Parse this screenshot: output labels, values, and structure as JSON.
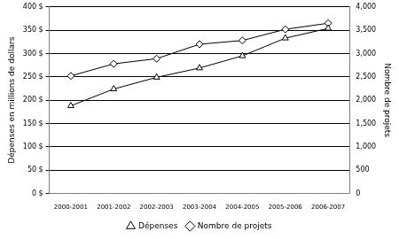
{
  "chart_data": {
    "type": "line",
    "categories": [
      "2000-2001",
      "2001-2002",
      "2002-2003",
      "2003-2004",
      "2004-2005",
      "2005-2006",
      "2006-2007"
    ],
    "series": [
      {
        "name": "Dépenses",
        "color": "#000000",
        "marker": "triangle",
        "values": [
          188,
          224,
          249,
          269,
          295,
          333,
          354
        ]
      },
      {
        "name": "Nombre de projets",
        "color": "#000000",
        "marker": "diamond",
        "axis": "y2",
        "values": [
          2520,
          2780,
          2890,
          3200,
          3280,
          3520,
          3650
        ]
      }
    ],
    "y_label": "Dépenses en millions de dollars",
    "y2_label": "Nombre de projets",
    "ylim": [
      0,
      400
    ],
    "yticks": [
      {
        "value": 0,
        "label": "0 $"
      },
      {
        "value": 50,
        "label": "50 $"
      },
      {
        "value": 100,
        "label": "100 $"
      },
      {
        "value": 150,
        "label": "150 $"
      },
      {
        "value": 200,
        "label": "200 $"
      },
      {
        "value": 250,
        "label": "250 $"
      },
      {
        "value": 300,
        "label": "300 $"
      },
      {
        "value": 350,
        "label": "350 $"
      },
      {
        "value": 400,
        "label": "400 $"
      }
    ],
    "y2lim": [
      0,
      4000
    ],
    "y2ticks": [
      0,
      500,
      {
        "value": 1000,
        "label": "1,000"
      },
      {
        "value": 1500,
        "label": "1,500"
      },
      {
        "value": 2000,
        "label": "2,000"
      },
      {
        "value": 2500,
        "label": "2,500"
      },
      {
        "value": 3000,
        "label": "3,000"
      },
      {
        "value": 3500,
        "label": "3,500"
      },
      {
        "value": 4000,
        "label": "4,000"
      }
    ],
    "grid": true,
    "legend": "bottom"
  }
}
